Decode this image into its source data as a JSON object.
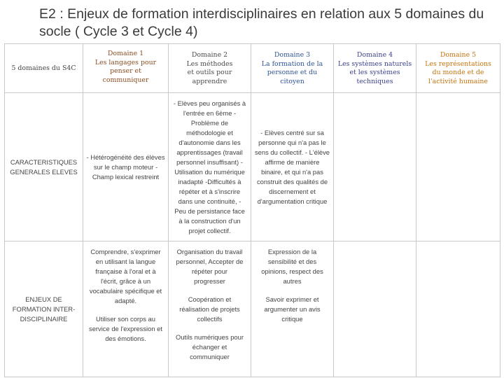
{
  "title": "E2 : Enjeux de formation interdisciplinaires en relation aux 5 domaines du socle ( Cycle 3 et Cycle 4)",
  "header": {
    "row_label": "5 domaines du S4C",
    "domains": [
      {
        "num": "Domaine 1",
        "name": "Les langages pour penser et communiquer",
        "color": "#8a4d22"
      },
      {
        "num": "Domaine 2",
        "name": "Les méthodes et outils pour apprendre",
        "color": "#4a4a4a"
      },
      {
        "num": "Domaine 3",
        "name": "La formation de la personne et du citoyen",
        "color": "#2f5496"
      },
      {
        "num": "Domaine 4",
        "name": "Les systèmes naturels et les systèmes techniques",
        "color": "#3a3f8a"
      },
      {
        "num": "Domaine 5",
        "name": "Les représentations du monde et de l'activité humaine",
        "color": "#c2730f"
      }
    ]
  },
  "rows": {
    "caracteristiques": {
      "label": "CARACTERISTIQUES GENERALES ELEVES",
      "d1": "- Hétérogénéité des élèves sur le champ moteur - Champ lexical restreint",
      "d2": "- Elèves peu organisés à l'entrée en 6ème - Problème de méthodologie et d'autonomie dans les apprentissages (travail personnel insuffisant) -Utilisation du numérique inadapté -Difficultés à répéter et à s'inscrire dans une continuité, -Peu de persistance face à la construction d'un projet collectif.",
      "d3": "- Elèves centré sur sa personne qui n'a pas le sens du collectif. - L'élève affirme de manière binaire, et qui n'a pas construit des qualités de discernement et d'argumentation critique"
    },
    "enjeux": {
      "label": "ENJEUX DE FORMATION INTER-DISCIPLINAIRE",
      "d1": [
        "Comprendre, s'exprimer en utilisant la langue française à l'oral et à l'écrit, grâce à un vocabulaire spécifique et adapté.",
        "Utiliser son corps au service de l'expression et des émotions."
      ],
      "d2": [
        "Organisation du travail personnel, Accepter de répéter pour progresser",
        "Coopération et réalisation de projets collectifs",
        "Outils numériques pour échanger et communiquer"
      ],
      "d3": [
        "Expression de la sensibilité et des opinions, respect des autres",
        "Savoir exprimer et argumenter un avis critique"
      ]
    }
  }
}
